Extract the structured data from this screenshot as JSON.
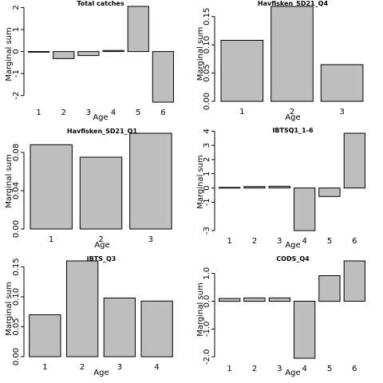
{
  "chart_data": [
    {
      "type": "bar",
      "title": "Total catches",
      "xlabel": "Age",
      "ylabel": "Marginal sum",
      "categories": [
        "1",
        "2",
        "3",
        "4",
        "5",
        "6"
      ],
      "values": [
        -0.03,
        -0.32,
        -0.18,
        0.05,
        2.05,
        -2.3
      ],
      "ylim": [
        -2.3,
        2.05
      ],
      "yticks": [
        -2,
        -1,
        0,
        1,
        2
      ],
      "ytick_labels": [
        "-2",
        "-1",
        "0",
        "1",
        "2"
      ]
    },
    {
      "type": "bar",
      "title": "Havfisken_SD21_Q4",
      "xlabel": "Age",
      "ylabel": "Marginal sum",
      "categories": [
        "1",
        "2",
        "3"
      ],
      "values": [
        0.108,
        0.168,
        0.065
      ],
      "ylim": [
        0,
        0.168
      ],
      "yticks": [
        0,
        0.05,
        0.1,
        0.15
      ],
      "ytick_labels": [
        "0.00",
        "0.05",
        "0.10",
        "0.15"
      ]
    },
    {
      "type": "bar",
      "title": "Havfisken_SD21_Q1",
      "xlabel": "Age",
      "ylabel": "Marginal sum",
      "categories": [
        "1",
        "2",
        "3"
      ],
      "values": [
        0.088,
        0.075,
        0.1
      ],
      "ylim": [
        0,
        0.1
      ],
      "yticks": [
        0,
        0.04,
        0.08
      ],
      "ytick_labels": [
        "0.00",
        "0.04",
        "0.08"
      ]
    },
    {
      "type": "bar",
      "title": "IBTSQ1_1-6",
      "xlabel": "Age",
      "ylabel": "Marginal sum",
      "categories": [
        "1",
        "2",
        "3",
        "4",
        "5",
        "6"
      ],
      "values": [
        0.04,
        0.1,
        0.12,
        -3.0,
        -0.6,
        3.85
      ],
      "ylim": [
        -3.0,
        3.85
      ],
      "yticks": [
        -3,
        -1,
        0,
        1,
        2,
        3,
        4
      ],
      "ytick_labels": [
        "-3",
        "-1",
        "0",
        "1",
        "2",
        "3",
        "4"
      ]
    },
    {
      "type": "bar",
      "title": "IBTS_Q3",
      "xlabel": "Age",
      "ylabel": "Marginal sum",
      "categories": [
        "1",
        "2",
        "3",
        "4"
      ],
      "values": [
        0.07,
        0.16,
        0.098,
        0.093
      ],
      "ylim": [
        0,
        0.16
      ],
      "yticks": [
        0,
        0.05,
        0.1,
        0.15
      ],
      "ytick_labels": [
        "0.00",
        "0.05",
        "0.10",
        "0.15"
      ]
    },
    {
      "type": "bar",
      "title": "CODS_Q4",
      "xlabel": "Age",
      "ylabel": "Marginal sum",
      "categories": [
        "1",
        "2",
        "3",
        "4",
        "5",
        "6"
      ],
      "values": [
        0.1,
        0.12,
        0.12,
        -2.05,
        0.92,
        1.45
      ],
      "ylim": [
        -2.05,
        1.45
      ],
      "yticks": [
        -2.0,
        -1.0,
        0.0,
        1.0
      ],
      "ytick_labels": [
        "-2.0",
        "-1.0",
        "0.0",
        "1.0"
      ]
    }
  ]
}
